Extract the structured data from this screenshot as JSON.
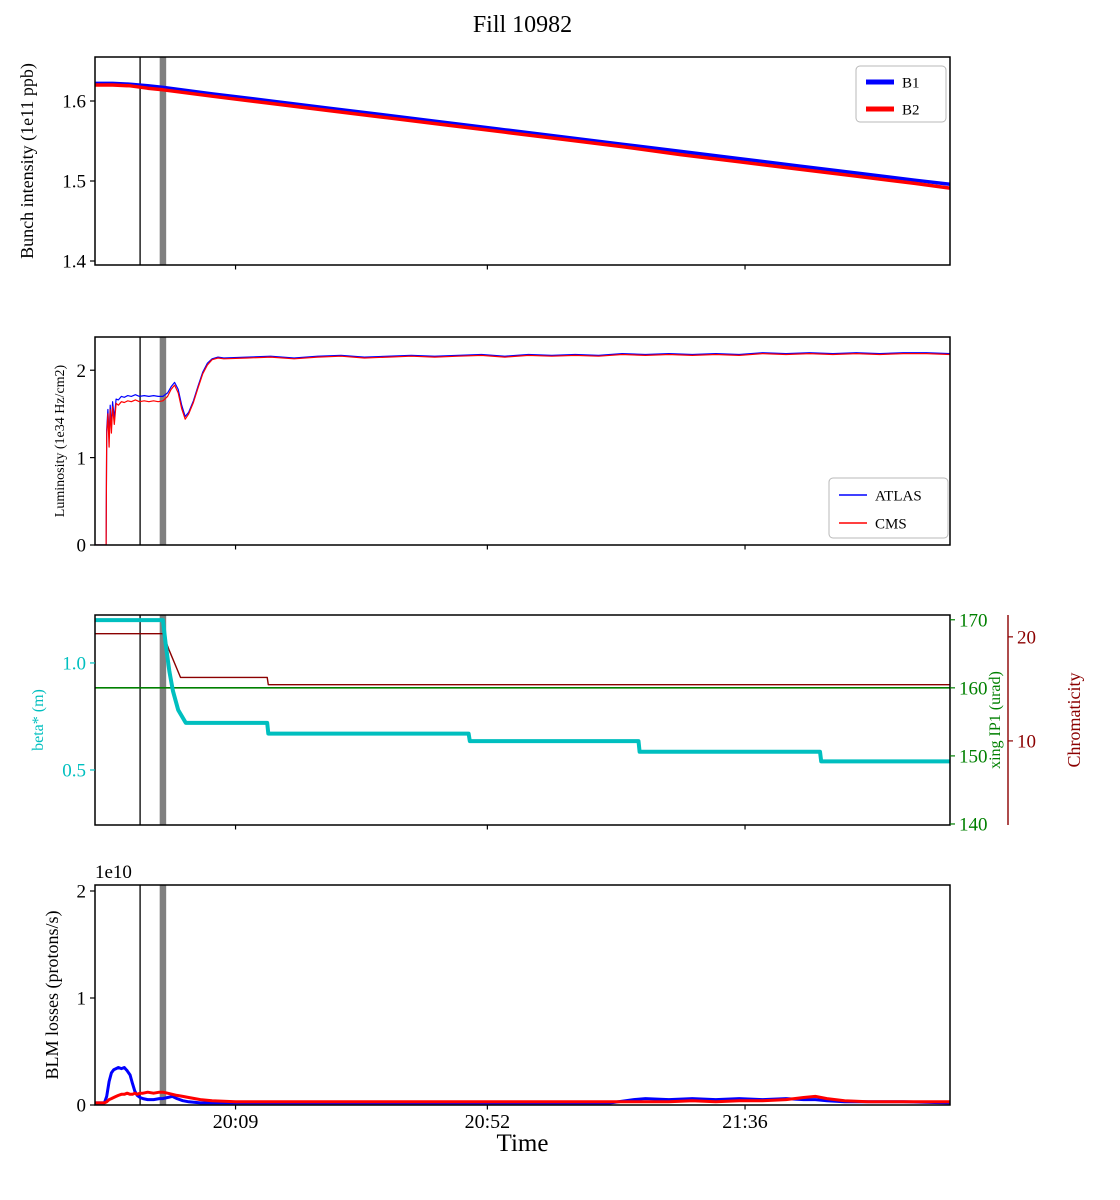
{
  "chart_data": {
    "type": "line",
    "title": "Fill 10982",
    "x_axis": {
      "label": "Time",
      "range_minutes": [
        0,
        146
      ],
      "ticks": [
        {
          "t": 24,
          "label": "20:09"
        },
        {
          "t": 67,
          "label": "20:52"
        },
        {
          "t": 111,
          "label": "21:36"
        }
      ]
    },
    "event_lines": [
      {
        "name": "marker-thin",
        "t": 7.7,
        "color": "#000000",
        "width": 1.3
      },
      {
        "name": "marker-thick",
        "t": 11.6,
        "color": "#808080",
        "width": 6.5
      }
    ],
    "panels": [
      {
        "name": "bunch-intensity",
        "offset_text": "",
        "axes": [
          {
            "name": "intensity",
            "side": "left",
            "color": "#000000",
            "label": "Bunch intensity (1e11 ppb)",
            "label_size": 18,
            "ylim": [
              1.395,
              1.655
            ],
            "ticks": [
              {
                "v": 1.4,
                "label": "1.4"
              },
              {
                "v": 1.5,
                "label": "1.5"
              },
              {
                "v": 1.6,
                "label": "1.6"
              }
            ]
          }
        ],
        "series": [
          {
            "name": "B1",
            "axis": 0,
            "color": "#0000ff",
            "width": 3.5,
            "x": [
              0,
              3,
              6,
              9,
              11.6,
              20,
              30,
              40,
              50,
              60,
              70,
              80,
              90,
              100,
              110,
              120,
              130,
              140,
              146
            ],
            "y": [
              1.622,
              1.622,
              1.621,
              1.619,
              1.617,
              1.609,
              1.6,
              1.591,
              1.582,
              1.573,
              1.564,
              1.555,
              1.546,
              1.537,
              1.528,
              1.519,
              1.51,
              1.501,
              1.496
            ]
          },
          {
            "name": "B2",
            "axis": 0,
            "color": "#ff0000",
            "width": 3.5,
            "x": [
              0,
              3,
              6,
              9,
              11.6,
              20,
              30,
              40,
              50,
              60,
              70,
              80,
              90,
              100,
              110,
              120,
              130,
              140,
              146
            ],
            "y": [
              1.62,
              1.62,
              1.619,
              1.616,
              1.614,
              1.606,
              1.597,
              1.588,
              1.579,
              1.57,
              1.561,
              1.552,
              1.543,
              1.533,
              1.524,
              1.515,
              1.506,
              1.497,
              1.491
            ]
          }
        ],
        "legend": {
          "entries": [
            {
              "label": "B1",
              "color": "#0000ff",
              "width": 5
            },
            {
              "label": "B2",
              "color": "#ff0000",
              "width": 5
            }
          ]
        }
      },
      {
        "name": "luminosity",
        "offset_text": "",
        "axes": [
          {
            "name": "luminosity",
            "side": "left",
            "color": "#000000",
            "label": "Luminosity (1e34 Hz/cm2)",
            "label_size": 14,
            "ylim": [
              0,
              2.38
            ],
            "ticks": [
              {
                "v": 0,
                "label": "0"
              },
              {
                "v": 1,
                "label": "1"
              },
              {
                "v": 2,
                "label": "2"
              }
            ]
          }
        ],
        "series": [
          {
            "name": "ATLAS",
            "axis": 0,
            "color": "#0000ff",
            "width": 1.2,
            "x": [
              0,
              1.9,
              2.0,
              2.2,
              2.4,
              2.6,
              2.8,
              3.0,
              3.3,
              3.6,
              4.0,
              4.5,
              5.0,
              5.6,
              6.2,
              6.9,
              7.6,
              8.4,
              9.2,
              10.0,
              10.8,
              11.6,
              12.4,
              13.0,
              13.6,
              14.2,
              14.8,
              15.4,
              16.0,
              16.8,
              17.6,
              18.4,
              19.2,
              20.0,
              21.0,
              22,
              26,
              30,
              34,
              38,
              42,
              46,
              50,
              54,
              58,
              62,
              66,
              70,
              74,
              78,
              82,
              86,
              90,
              94,
              98,
              102,
              106,
              110,
              114,
              118,
              122,
              126,
              130,
              134,
              138,
              142,
              146
            ],
            "y": [
              0,
              0,
              1.32,
              1.55,
              1.22,
              1.6,
              1.35,
              1.64,
              1.45,
              1.67,
              1.66,
              1.7,
              1.69,
              1.71,
              1.7,
              1.72,
              1.7,
              1.71,
              1.7,
              1.71,
              1.7,
              1.7,
              1.74,
              1.81,
              1.86,
              1.78,
              1.6,
              1.47,
              1.52,
              1.65,
              1.82,
              1.98,
              2.08,
              2.13,
              2.15,
              2.14,
              2.15,
              2.16,
              2.14,
              2.16,
              2.17,
              2.15,
              2.16,
              2.17,
              2.16,
              2.17,
              2.18,
              2.16,
              2.18,
              2.17,
              2.18,
              2.17,
              2.19,
              2.18,
              2.19,
              2.18,
              2.19,
              2.18,
              2.2,
              2.19,
              2.2,
              2.19,
              2.2,
              2.19,
              2.2,
              2.2,
              2.19
            ]
          },
          {
            "name": "CMS",
            "axis": 0,
            "color": "#ff0000",
            "width": 1.2,
            "x": [
              0,
              1.9,
              2.0,
              2.2,
              2.4,
              2.6,
              2.8,
              3.0,
              3.3,
              3.6,
              4.0,
              4.5,
              5.0,
              5.6,
              6.2,
              6.9,
              7.6,
              8.4,
              9.2,
              10.0,
              10.8,
              11.6,
              12.4,
              13.0,
              13.6,
              14.2,
              14.8,
              15.4,
              16.0,
              16.8,
              17.6,
              18.4,
              19.2,
              20.0,
              21.0,
              22,
              26,
              30,
              34,
              38,
              42,
              46,
              50,
              54,
              58,
              62,
              66,
              70,
              74,
              78,
              82,
              86,
              90,
              94,
              98,
              102,
              106,
              110,
              114,
              118,
              122,
              126,
              130,
              134,
              138,
              142,
              146
            ],
            "y": [
              0,
              0,
              1.25,
              1.5,
              1.12,
              1.55,
              1.28,
              1.58,
              1.38,
              1.62,
              1.6,
              1.64,
              1.63,
              1.65,
              1.64,
              1.66,
              1.64,
              1.65,
              1.64,
              1.65,
              1.64,
              1.65,
              1.7,
              1.78,
              1.83,
              1.74,
              1.56,
              1.44,
              1.5,
              1.63,
              1.8,
              1.96,
              2.06,
              2.12,
              2.14,
              2.13,
              2.14,
              2.15,
              2.13,
              2.15,
              2.16,
              2.14,
              2.15,
              2.16,
              2.15,
              2.16,
              2.17,
              2.15,
              2.17,
              2.16,
              2.17,
              2.16,
              2.18,
              2.17,
              2.18,
              2.17,
              2.18,
              2.17,
              2.19,
              2.18,
              2.19,
              2.18,
              2.19,
              2.18,
              2.19,
              2.19,
              2.18
            ]
          }
        ],
        "legend": {
          "entries": [
            {
              "label": "ATLAS",
              "color": "#0000ff",
              "width": 1.4
            },
            {
              "label": "CMS",
              "color": "#ff0000",
              "width": 1.4
            }
          ]
        }
      },
      {
        "name": "optics",
        "offset_text": "",
        "axes": [
          {
            "name": "beta-star",
            "side": "left",
            "color": "#00bfbf",
            "label": "beta* (m)",
            "label_size": 16,
            "ylim": [
              0.243,
              1.224
            ],
            "ticks": [
              {
                "v": 0.5,
                "label": "0.5"
              },
              {
                "v": 1.0,
                "label": "1.0"
              }
            ]
          },
          {
            "name": "xing-ip1",
            "side": "right",
            "color": "#008000",
            "label": "xing IP1 (urad)",
            "label_size": 16,
            "ylim": [
              139.85,
              170.7
            ],
            "ticks": [
              {
                "v": 140,
                "label": "140"
              },
              {
                "v": 150,
                "label": "150"
              },
              {
                "v": 160,
                "label": "160"
              },
              {
                "v": 170,
                "label": "170"
              }
            ]
          },
          {
            "name": "chromaticity",
            "side": "right2",
            "color": "#8b0000",
            "label": "Chromaticity",
            "label_size": 18,
            "ylim": [
              1.92,
              22.1
            ],
            "ticks": [
              {
                "v": 10,
                "label": "10"
              },
              {
                "v": 20,
                "label": "20"
              }
            ]
          }
        ],
        "series": [
          {
            "name": "xing-ip1",
            "axis": 1,
            "color": "#008000",
            "width": 1.6,
            "x": [
              0,
              146
            ],
            "y": [
              160,
              160
            ]
          },
          {
            "name": "chromaticity",
            "axis": 2,
            "color": "#8b0000",
            "width": 1.4,
            "x": [
              0,
              11.6,
              12.6,
              14.6,
              29.4,
              29.6,
              146
            ],
            "y": [
              20.3,
              20.3,
              18.8,
              16.1,
              16.1,
              15.4,
              15.4
            ]
          },
          {
            "name": "beta-star",
            "axis": 0,
            "color": "#00bfbf",
            "width": 4,
            "x": [
              0,
              11.6,
              12.1,
              12.7,
              13.3,
              14.2,
              15.5,
              29.4,
              29.6,
              63.8,
              64.0,
              92.8,
              93.0,
              123.8,
              124.0,
              146
            ],
            "y": [
              1.2,
              1.2,
              1.08,
              0.96,
              0.87,
              0.78,
              0.72,
              0.72,
              0.67,
              0.67,
              0.635,
              0.635,
              0.585,
              0.585,
              0.54,
              0.54
            ]
          }
        ],
        "legend": null
      },
      {
        "name": "blm-losses",
        "offset_text": "1e10",
        "axes": [
          {
            "name": "blm",
            "side": "left",
            "color": "#000000",
            "label": "BLM losses (protons/s)",
            "label_size": 18,
            "ylim": [
              0,
              2.056
            ],
            "ticks": [
              {
                "v": 0,
                "label": "0"
              },
              {
                "v": 1,
                "label": "1"
              },
              {
                "v": 2,
                "label": "2"
              }
            ]
          }
        ],
        "series": [
          {
            "name": "blm-b1",
            "axis": 0,
            "color": "#0000ff",
            "width": 3,
            "x": [
              0,
              1.6,
              2.0,
              2.4,
              2.8,
              3.2,
              3.6,
              4.0,
              4.5,
              5.0,
              5.5,
              6.0,
              6.4,
              6.8,
              7.2,
              7.7,
              8.2,
              9.0,
              10,
              11,
              11.6,
              12.4,
              13.2,
              14,
              15,
              16,
              18,
              20,
              24,
              28,
              34,
              40,
              48,
              56,
              64,
              72,
              80,
              88,
              92,
              94,
              98,
              102,
              106,
              110,
              114,
              118,
              121,
              123,
              125,
              128,
              132,
              138,
              146
            ],
            "y": [
              0.02,
              0.02,
              0.08,
              0.22,
              0.3,
              0.33,
              0.34,
              0.35,
              0.34,
              0.35,
              0.32,
              0.28,
              0.2,
              0.13,
              0.09,
              0.07,
              0.06,
              0.05,
              0.05,
              0.06,
              0.06,
              0.07,
              0.08,
              0.06,
              0.04,
              0.03,
              0.02,
              0.02,
              0.02,
              0.02,
              0.02,
              0.02,
              0.02,
              0.02,
              0.02,
              0.02,
              0.02,
              0.02,
              0.05,
              0.06,
              0.05,
              0.06,
              0.05,
              0.06,
              0.05,
              0.06,
              0.05,
              0.05,
              0.04,
              0.03,
              0.03,
              0.03,
              0.02
            ]
          },
          {
            "name": "blm-b2",
            "axis": 0,
            "color": "#ff0000",
            "width": 3,
            "x": [
              0,
              1.6,
              2.0,
              2.4,
              2.8,
              3.2,
              3.6,
              4.0,
              4.5,
              5.0,
              5.5,
              6.0,
              6.4,
              6.8,
              7.2,
              7.7,
              8.2,
              9.0,
              10,
              11,
              11.6,
              12.4,
              13.2,
              14,
              15,
              16,
              18,
              20,
              24,
              28,
              34,
              40,
              48,
              56,
              64,
              72,
              80,
              88,
              92,
              94,
              98,
              102,
              106,
              110,
              114,
              118,
              121,
              123,
              125,
              128,
              132,
              138,
              146
            ],
            "y": [
              0.02,
              0.02,
              0.03,
              0.05,
              0.06,
              0.07,
              0.08,
              0.09,
              0.1,
              0.1,
              0.11,
              0.1,
              0.1,
              0.11,
              0.1,
              0.11,
              0.11,
              0.12,
              0.11,
              0.12,
              0.12,
              0.11,
              0.1,
              0.09,
              0.08,
              0.07,
              0.05,
              0.04,
              0.03,
              0.03,
              0.03,
              0.03,
              0.03,
              0.03,
              0.03,
              0.03,
              0.03,
              0.03,
              0.03,
              0.03,
              0.03,
              0.04,
              0.03,
              0.04,
              0.04,
              0.05,
              0.07,
              0.08,
              0.06,
              0.04,
              0.03,
              0.03,
              0.03
            ]
          }
        ],
        "legend": null
      }
    ]
  }
}
